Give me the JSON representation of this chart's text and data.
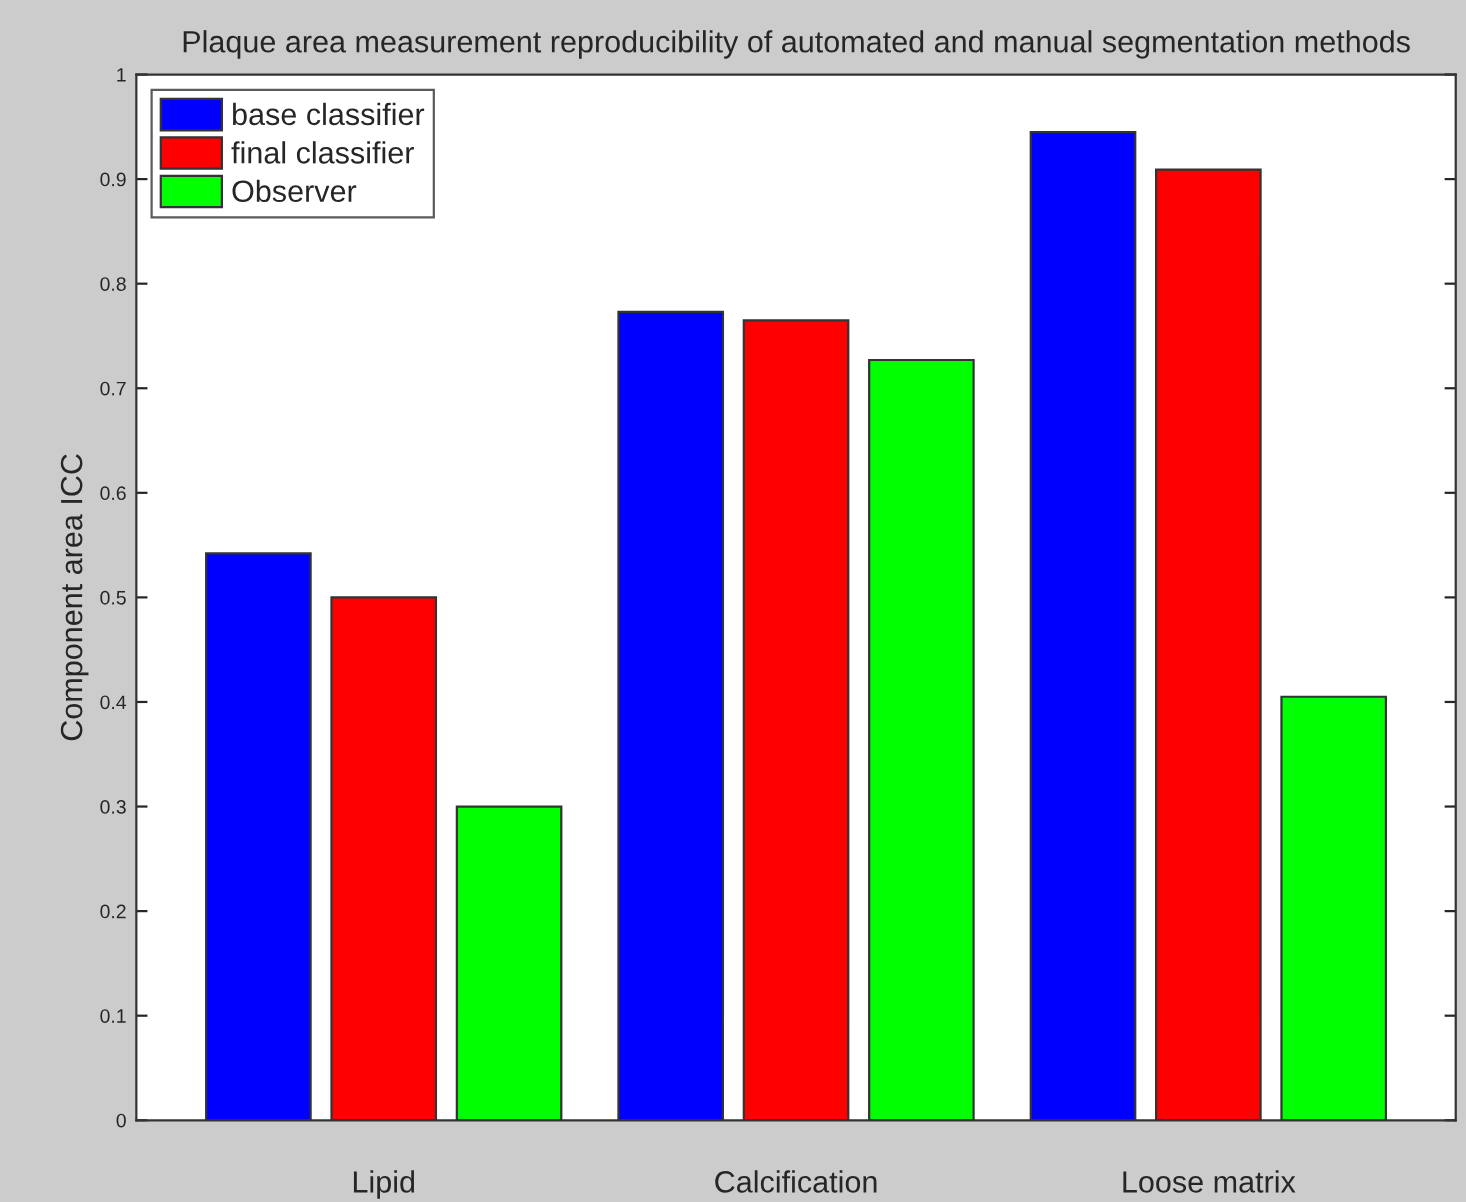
{
  "chart_data": {
    "type": "bar",
    "title": "Plaque area measurement reproducibility of automated and manual segmentation methods",
    "ylabel": "Component area ICC",
    "categories": [
      "Lipid",
      "Calcification",
      "Loose matrix"
    ],
    "series": [
      {
        "name": "base classifier",
        "color": "#0000ff",
        "values": [
          0.542,
          0.773,
          0.945
        ]
      },
      {
        "name": "final classifier",
        "color": "#ff0000",
        "values": [
          0.5,
          0.765,
          0.909
        ]
      },
      {
        "name": "Observer",
        "color": "#00ff00",
        "values": [
          0.3,
          0.727,
          0.405
        ]
      }
    ],
    "ylim": [
      0,
      1
    ],
    "yticks": [
      0,
      0.1,
      0.2,
      0.3,
      0.4,
      0.5,
      0.6,
      0.7,
      0.8,
      0.9,
      1
    ],
    "grid": false,
    "legend": "top left"
  }
}
